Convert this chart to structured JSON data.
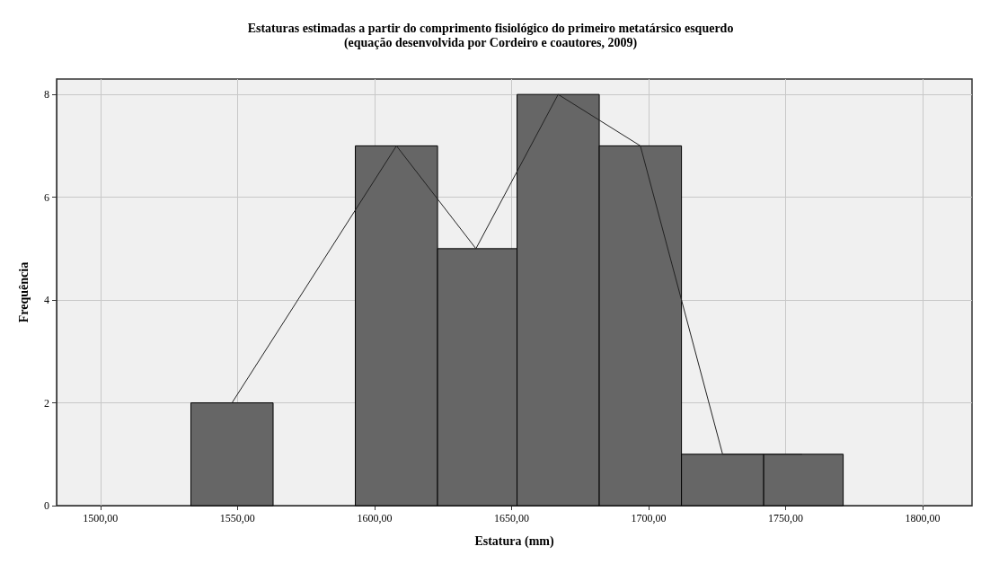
{
  "chart_data": {
    "type": "histogram",
    "title": "Estaturas estimadas a partir do comprimento fisiológico do primeiro metatársico esquerdo",
    "subtitle": "(equação desenvolvida por Cordeiro e coautores, 2009)",
    "xlabel": "Estatura (mm)",
    "ylabel": "Frequência",
    "bins": [
      1533,
      1563,
      1593,
      1623,
      1652,
      1682,
      1712,
      1742,
      1771
    ],
    "values": [
      2,
      0,
      7,
      5,
      8,
      7,
      1,
      1
    ],
    "color": "#666666",
    "series": [
      {
        "type": "line",
        "color": "#222222",
        "x": [
          1548,
          1608,
          1637,
          1667,
          1697,
          1727,
          1756
        ],
        "values": [
          2,
          7,
          5,
          8,
          7,
          1,
          1
        ]
      }
    ],
    "xlim": [
      1484,
      1818
    ],
    "ylim": [
      0,
      8.3
    ],
    "xticks": [
      {
        "value": 1500,
        "label": "1500,00"
      },
      {
        "value": 1550,
        "label": "1550,00"
      },
      {
        "value": 1600,
        "label": "1600,00"
      },
      {
        "value": 1650,
        "label": "1650,00"
      },
      {
        "value": 1700,
        "label": "1700,00"
      },
      {
        "value": 1750,
        "label": "1750,00"
      },
      {
        "value": 1800,
        "label": "1800,00"
      }
    ],
    "yticks": [
      0,
      2,
      4,
      6,
      8
    ],
    "grid": true,
    "marker": "none",
    "line_style": "solid"
  }
}
